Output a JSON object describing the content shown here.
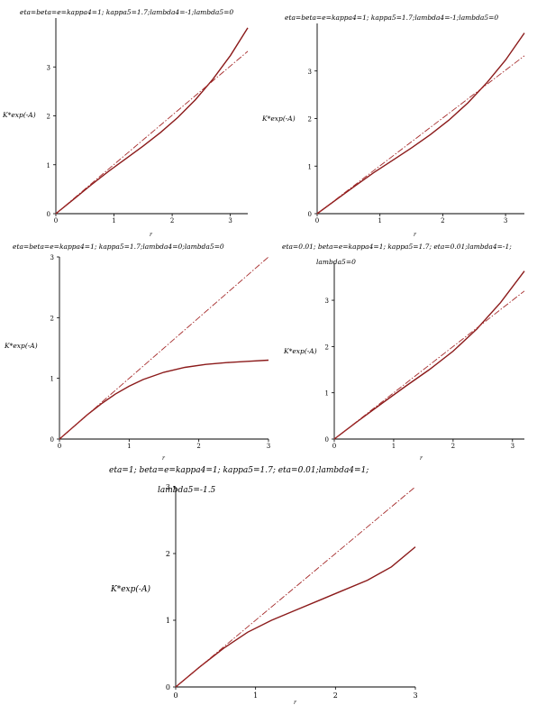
{
  "chart_data": [
    {
      "type": "line",
      "title": "eta=beta=e=kappa4=1; kappa5=1.7;lambda4=-1;lambda5=0",
      "ylabel": "K*exp(-A)",
      "xlabel": "r",
      "xlim": [
        0,
        3.3
      ],
      "ylim": [
        0,
        4.0
      ],
      "xticks": [
        0,
        1,
        2,
        3
      ],
      "yticks": [
        0,
        1,
        2,
        3
      ],
      "series": [
        {
          "style": "solid",
          "color": "#8b1a1a",
          "x": [
            0,
            0.3,
            0.6,
            0.9,
            1.2,
            1.5,
            1.8,
            2.1,
            2.4,
            2.7,
            3.0,
            3.3
          ],
          "y": [
            0,
            0.29,
            0.58,
            0.86,
            1.12,
            1.38,
            1.66,
            1.97,
            2.33,
            2.75,
            3.23,
            3.8
          ]
        },
        {
          "style": "dashdot",
          "color": "#a52a2a",
          "x": [
            0,
            3.3
          ],
          "y": [
            0,
            3.32
          ]
        }
      ]
    },
    {
      "type": "line",
      "title": "eta=beta=e=kappa4=1; kappa5=1.7;lambda4=-1;lambda5=0",
      "ylabel": "K*exp(-A)",
      "xlabel": "r",
      "xlim": [
        0,
        3.3
      ],
      "ylim": [
        0,
        4.0
      ],
      "xticks": [
        0,
        1,
        2,
        3
      ],
      "yticks": [
        0,
        1,
        2,
        3
      ],
      "series": [
        {
          "style": "solid",
          "color": "#8b1a1a",
          "x": [
            0,
            0.3,
            0.6,
            0.9,
            1.2,
            1.5,
            1.8,
            2.1,
            2.4,
            2.7,
            3.0,
            3.3
          ],
          "y": [
            0,
            0.29,
            0.58,
            0.86,
            1.12,
            1.38,
            1.66,
            1.97,
            2.33,
            2.75,
            3.23,
            3.8
          ]
        },
        {
          "style": "dashdot",
          "color": "#a52a2a",
          "x": [
            0,
            3.3
          ],
          "y": [
            0,
            3.32
          ]
        }
      ]
    },
    {
      "type": "line",
      "title": "eta=beta=e=kappa4=1; kappa5=1.7;lambda4=0;lambda5=0",
      "ylabel": "K*exp(-A)",
      "xlabel": "r",
      "xlim": [
        0,
        3.0
      ],
      "ylim": [
        0,
        3.0
      ],
      "xticks": [
        0,
        1,
        2,
        3
      ],
      "yticks": [
        0,
        1,
        2,
        3
      ],
      "series": [
        {
          "style": "solid",
          "color": "#8b1a1a",
          "x": [
            0,
            0.2,
            0.4,
            0.6,
            0.8,
            1.0,
            1.2,
            1.5,
            1.8,
            2.1,
            2.4,
            2.7,
            3.0
          ],
          "y": [
            0,
            0.2,
            0.4,
            0.58,
            0.74,
            0.87,
            0.98,
            1.1,
            1.18,
            1.23,
            1.26,
            1.28,
            1.3
          ]
        },
        {
          "style": "dashdot",
          "color": "#a52a2a",
          "x": [
            0,
            3.0
          ],
          "y": [
            0,
            3.0
          ]
        }
      ]
    },
    {
      "type": "line",
      "title": "eta=0.01; beta=e=kappa4=1; kappa5=1.7; eta=0.01;lambda4=-1;lambda5=0",
      "ylabel": "K*exp(-A)",
      "xlabel": "r",
      "xlim": [
        0,
        3.2
      ],
      "ylim": [
        0,
        3.8
      ],
      "xticks": [
        0,
        1,
        2,
        3
      ],
      "yticks": [
        0,
        1,
        2,
        3
      ],
      "series": [
        {
          "style": "solid",
          "color": "#8b1a1a",
          "x": [
            0,
            0.4,
            0.8,
            1.2,
            1.6,
            2.0,
            2.4,
            2.8,
            3.2
          ],
          "y": [
            0,
            0.39,
            0.77,
            1.14,
            1.5,
            1.9,
            2.38,
            2.95,
            3.63
          ]
        },
        {
          "style": "dashdot",
          "color": "#a52a2a",
          "x": [
            0,
            3.2
          ],
          "y": [
            0,
            3.2
          ]
        }
      ]
    },
    {
      "type": "line",
      "title": "eta=1; beta=e=kappa4=1;  kappa5=1.7; eta=0.01;lambda4=1; lambda5=-1.5",
      "ylabel": "K*exp(-A)",
      "xlabel": "r",
      "xlim": [
        0,
        3.0
      ],
      "ylim": [
        0,
        3.0
      ],
      "xticks": [
        0,
        1,
        2,
        3
      ],
      "yticks": [
        0,
        1,
        2,
        3
      ],
      "series": [
        {
          "style": "solid",
          "color": "#8b1a1a",
          "x": [
            0,
            0.3,
            0.6,
            0.9,
            1.2,
            1.5,
            1.8,
            2.1,
            2.4,
            2.7,
            3.0
          ],
          "y": [
            0,
            0.3,
            0.58,
            0.82,
            1.0,
            1.15,
            1.3,
            1.45,
            1.6,
            1.8,
            2.1
          ]
        },
        {
          "style": "dashdot",
          "color": "#a52a2a",
          "x": [
            0,
            3.0
          ],
          "y": [
            0,
            3.0
          ]
        }
      ]
    }
  ]
}
